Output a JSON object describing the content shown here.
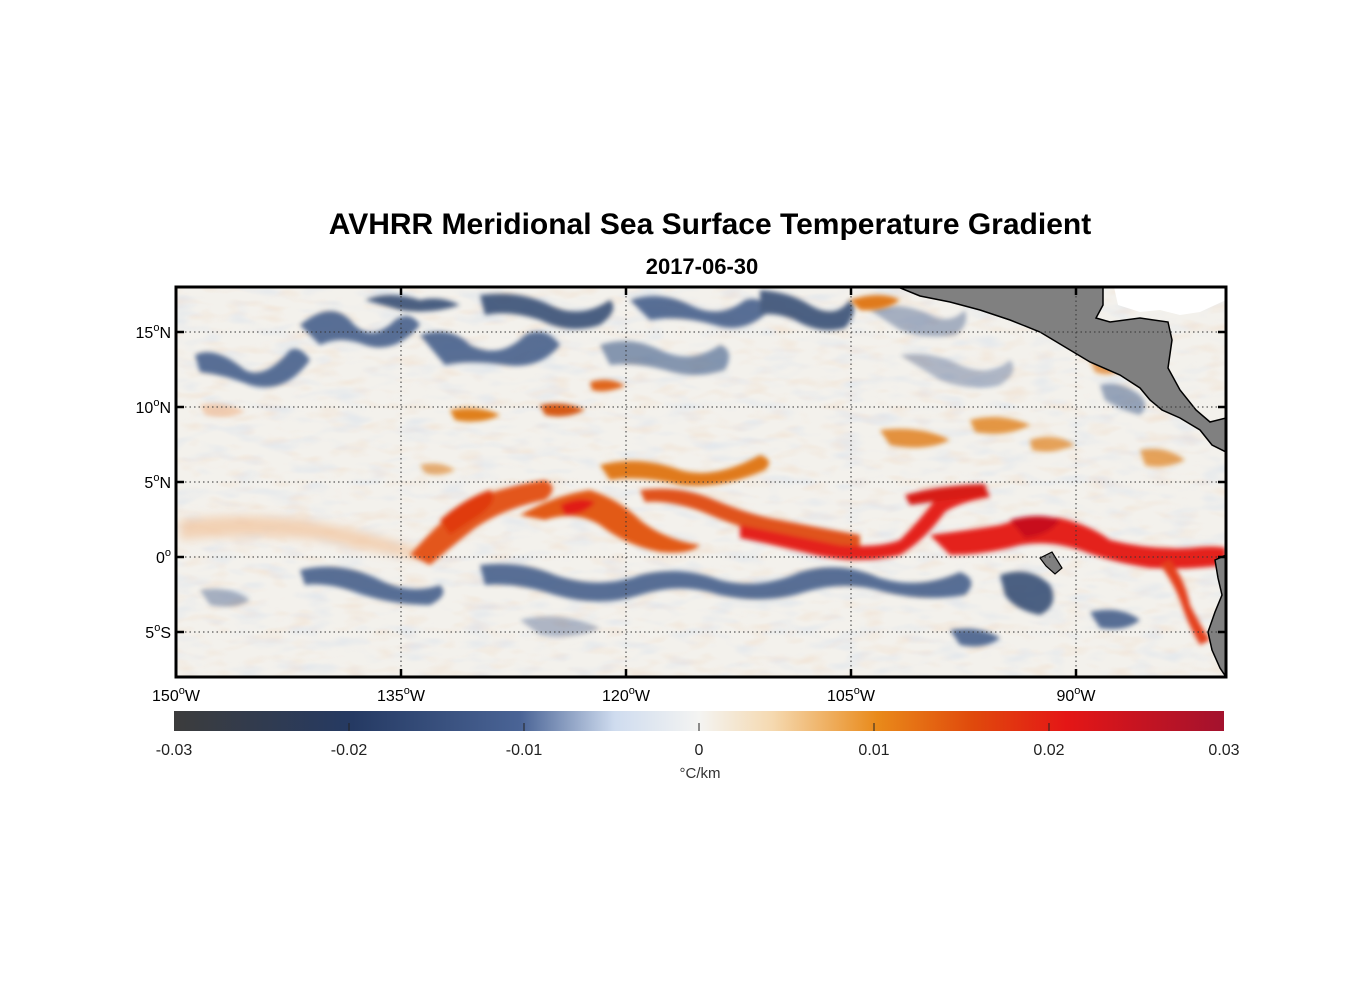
{
  "title": "AVHRR Meridional Sea Surface Temperature Gradient",
  "date": "2017-06-30",
  "map": {
    "lon_range": [
      -150,
      -80
    ],
    "lat_range": [
      -8,
      18
    ],
    "lat_ticks": [
      {
        "value": 15,
        "num": "15",
        "hemi": "N"
      },
      {
        "value": 10,
        "num": "10",
        "hemi": "N"
      },
      {
        "value": 5,
        "num": "5",
        "hemi": "N"
      },
      {
        "value": 0,
        "num": "0",
        "hemi": ""
      },
      {
        "value": -5,
        "num": "5",
        "hemi": "S"
      }
    ],
    "lon_ticks": [
      {
        "value": -150,
        "num": "150",
        "hemi": "W"
      },
      {
        "value": -135,
        "num": "135",
        "hemi": "W"
      },
      {
        "value": -120,
        "num": "120",
        "hemi": "W"
      },
      {
        "value": -105,
        "num": "105",
        "hemi": "W"
      },
      {
        "value": -90,
        "num": "90",
        "hemi": "W"
      }
    ],
    "grid": "dotted",
    "land_color": "#808080",
    "features": {
      "warm_front_band": "orange-red gradient band along ~0-5N from 140W to 80W, strongest east of 110W",
      "northern_cold_bands": "blue patches near 12-18N",
      "southern_cold_band": "blue band near 2-4S"
    }
  },
  "colorbar": {
    "min": -0.03,
    "max": 0.03,
    "ticks": [
      "-0.03",
      "-0.02",
      "-0.01",
      "0",
      "0.01",
      "0.02",
      "0.03"
    ],
    "unit": "°C/km",
    "colors": [
      "#3c3c3c",
      "#253a63",
      "#4a6496",
      "#cfdcef",
      "#f4f4f2",
      "#f5d9b0",
      "#e98a1a",
      "#e04a0c",
      "#e41616",
      "#a3122e"
    ]
  }
}
